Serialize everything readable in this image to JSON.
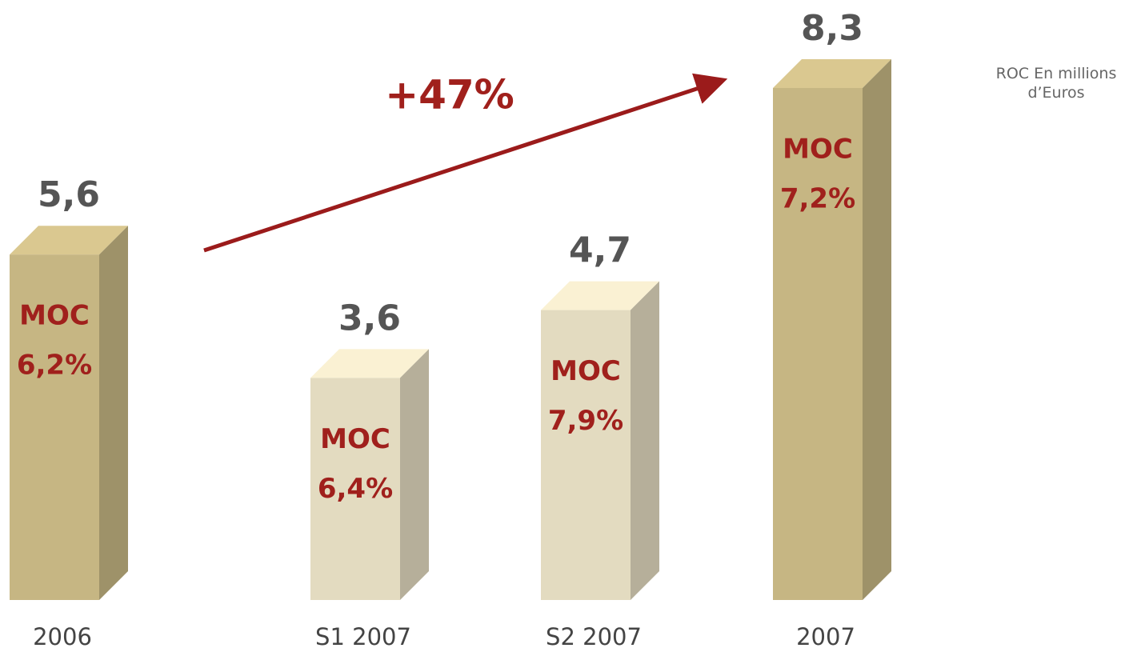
{
  "chart_data": {
    "type": "bar3d",
    "categories": [
      "2006",
      "S1 2007",
      "S2 2007",
      "2007"
    ],
    "values": [
      5.6,
      3.6,
      4.7,
      8.3
    ],
    "value_labels": [
      "5,6",
      "3,6",
      "4,7",
      "8,3"
    ],
    "colors": [
      "#c6b683",
      "#e3dbc0",
      "#e3dbc0",
      "#c6b683"
    ],
    "margin_title": "MOC",
    "margin_labels": [
      "6,2%",
      "6,4%",
      "7,9%",
      "7,2%"
    ],
    "growth_label": "+47%",
    "unit_label": "ROC En millions d’Euros"
  }
}
